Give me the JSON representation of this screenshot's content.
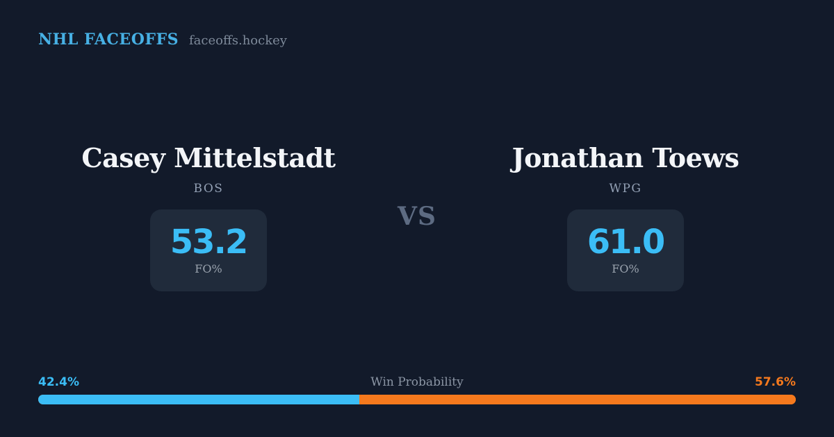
{
  "header": {
    "brand": "NHL FACEOFFS",
    "site": "faceoffs.hockey"
  },
  "matchup": {
    "vs_label": "VS",
    "players": [
      {
        "name": "Casey Mittelstadt",
        "team": "BOS",
        "stat_value": "53.2",
        "stat_label": "FO%"
      },
      {
        "name": "Jonathan Toews",
        "team": "WPG",
        "stat_value": "61.0",
        "stat_label": "FO%"
      }
    ]
  },
  "win_probability": {
    "label": "Win Probability",
    "left_pct_label": "42.4%",
    "right_pct_label": "57.6%",
    "left_value": 42.4,
    "right_value": 57.6
  },
  "colors": {
    "background": "#121a2a",
    "card_background": "#202b3b",
    "brand_blue": "#47b0e4",
    "accent_blue": "#3bbdf6",
    "accent_orange": "#f5791d"
  }
}
